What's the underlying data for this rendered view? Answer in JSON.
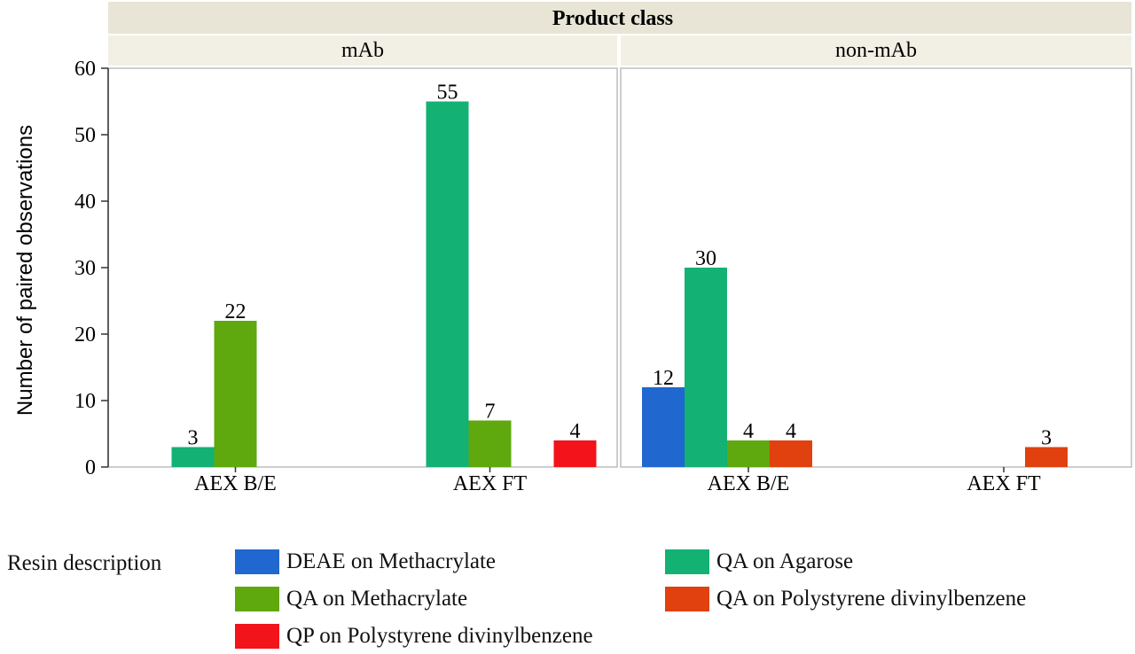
{
  "chart_data": {
    "type": "bar",
    "facet_header": "Product class",
    "ylabel": "Number of paired observations",
    "ylim": [
      0,
      60
    ],
    "yticks": [
      0,
      10,
      20,
      30,
      40,
      50,
      60
    ],
    "grid": false,
    "legend_title": "Resin description",
    "legend_position": "bottom",
    "series": [
      {
        "name": "DEAE on Methacrylate",
        "color": "#2067d0"
      },
      {
        "name": "QA on Agarose",
        "color": "#13b174"
      },
      {
        "name": "QA on Methacrylate",
        "color": "#5fa80e"
      },
      {
        "name": "QA on Polystyrene divinylbenzene",
        "color": "#e0410f"
      },
      {
        "name": "QP on Polystyrene divinylbenzene",
        "color": "#f2141a"
      }
    ],
    "panels": [
      {
        "label": "mAb",
        "categories": [
          {
            "name": "AEX B/E",
            "values": [
              null,
              3,
              22,
              null,
              null
            ]
          },
          {
            "name": "AEX FT",
            "values": [
              null,
              55,
              7,
              null,
              4
            ]
          }
        ]
      },
      {
        "label": "non-mAb",
        "categories": [
          {
            "name": "AEX B/E",
            "values": [
              12,
              30,
              4,
              4,
              null
            ]
          },
          {
            "name": "AEX FT",
            "values": [
              null,
              null,
              null,
              3,
              null
            ]
          }
        ]
      }
    ]
  }
}
